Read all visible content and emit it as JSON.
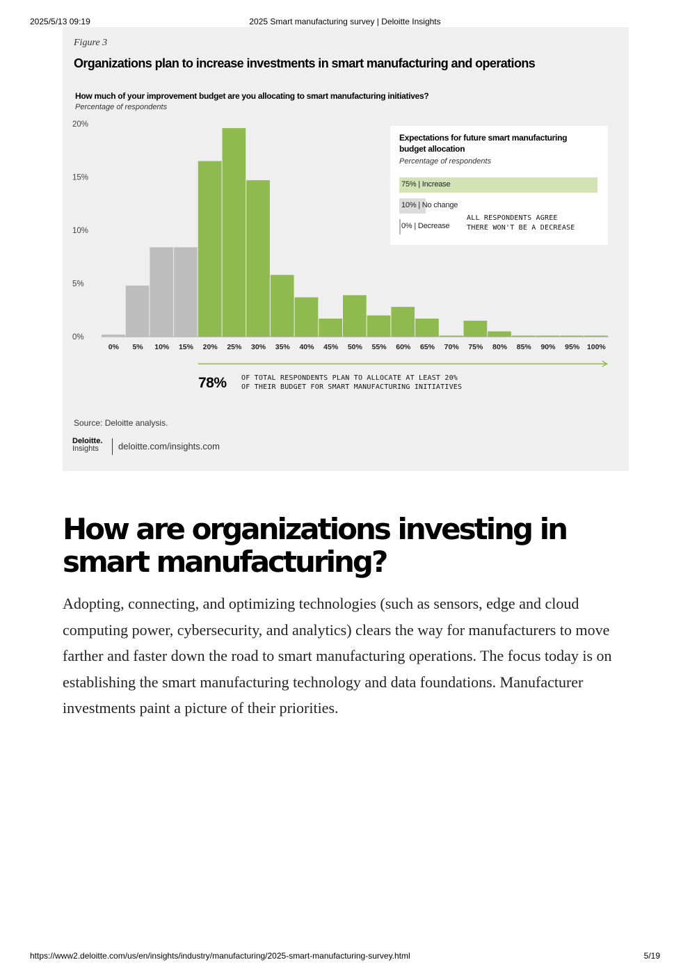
{
  "print_header": {
    "date": "2025/5/13 09:19",
    "title": "2025 Smart manufacturing survey | Deloitte Insights"
  },
  "figure": {
    "label": "Figure 3",
    "title": "Organizations plan to increase investments in smart manufacturing and operations",
    "question": "How much of your improvement budget are you allocating to smart manufacturing initiatives?",
    "question_sub": "Percentage of respondents",
    "inset": {
      "title": "Expectations for future smart manufacturing budget allocation",
      "subtitle": "Percentage of respondents",
      "bars": [
        {
          "label": "75% | Increase",
          "value": 75,
          "color": "#d3e3b6"
        },
        {
          "label": "10% | No change",
          "value": 10,
          "color": "#dcdcdc"
        },
        {
          "label": "0% | Decrease",
          "value": 0,
          "color": "#b5b5b5"
        }
      ],
      "note_line1": "ALL RESPONDENTS AGREE",
      "note_line2": "THERE WON'T BE A DECREASE"
    },
    "callout": {
      "number": "78%",
      "line1": "OF TOTAL RESPONDENTS PLAN TO ALLOCATE AT LEAST 20%",
      "line2": "OF THEIR BUDGET FOR SMART MANUFACTURING INITIATIVES"
    },
    "source": "Source: Deloitte analysis.",
    "brand": {
      "logo_top": "Deloitte.",
      "logo_bottom": "Insights",
      "url": "deloitte.com/insights.com"
    }
  },
  "chart_data": {
    "type": "bar",
    "title": "Organizations plan to increase investments in smart manufacturing and operations",
    "xlabel": "",
    "ylabel": "Percentage of respondents",
    "categories": [
      "0%",
      "5%",
      "10%",
      "15%",
      "20%",
      "25%",
      "30%",
      "35%",
      "40%",
      "45%",
      "50%",
      "55%",
      "60%",
      "65%",
      "70%",
      "75%",
      "80%",
      "85%",
      "90%",
      "95%",
      "100%"
    ],
    "values": [
      0.2,
      4.8,
      8.4,
      8.4,
      16.5,
      19.6,
      14.7,
      5.8,
      3.7,
      1.7,
      3.9,
      2.0,
      2.8,
      1.7,
      0.1,
      1.5,
      0.5,
      0.1,
      0.1,
      0.1,
      0.1
    ],
    "colors": [
      "#bdbdbd",
      "#bdbdbd",
      "#bdbdbd",
      "#bdbdbd",
      "#8fba4f",
      "#8fba4f",
      "#8fba4f",
      "#8fba4f",
      "#8fba4f",
      "#8fba4f",
      "#8fba4f",
      "#8fba4f",
      "#8fba4f",
      "#8fba4f",
      "#8fba4f",
      "#8fba4f",
      "#8fba4f",
      "#8fba4f",
      "#8fba4f",
      "#8fba4f",
      "#8fba4f"
    ],
    "yticks": [
      "0%",
      "5%",
      "10%",
      "15%",
      "20%"
    ],
    "ytick_values": [
      0,
      5,
      10,
      15,
      20
    ],
    "ylim": [
      0,
      20
    ],
    "grid": false,
    "accent_color": "#8fba4f",
    "neutral_color": "#bdbdbd"
  },
  "section": {
    "heading": "How are organizations investing in smart manufacturing?",
    "paragraph": "Adopting, connecting, and optimizing technologies (such as sensors, edge and cloud computing power, cybersecurity, and analytics) clears the way for manufacturers to move farther and faster down the road to smart manufacturing operations. The focus today is on establishing the smart manufacturing technology and data foundations. Manufacturer investments paint a picture of their priorities."
  },
  "print_footer": {
    "url": "https://www2.deloitte.com/us/en/insights/industry/manufacturing/2025-smart-manufacturing-survey.html",
    "page": "5/19"
  }
}
